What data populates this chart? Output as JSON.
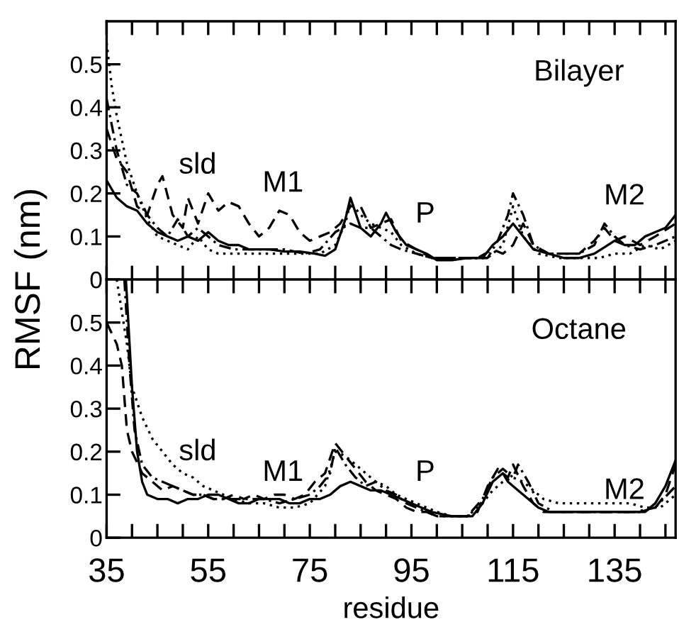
{
  "chart_data": [
    {
      "type": "line",
      "title": "Bilayer",
      "ylabel": "RMSF (nm)",
      "xlim": [
        35,
        147
      ],
      "ylim": [
        0,
        0.6
      ],
      "xticks": [
        {
          "value": 35,
          "label": null
        },
        {
          "value": 40,
          "label": null
        },
        {
          "value": 45,
          "label": null
        },
        {
          "value": 50,
          "label": null
        },
        {
          "value": 55,
          "label": null
        },
        {
          "value": 60,
          "label": null
        },
        {
          "value": 65,
          "label": null
        },
        {
          "value": 70,
          "label": null
        },
        {
          "value": 75,
          "label": null
        },
        {
          "value": 80,
          "label": null
        },
        {
          "value": 85,
          "label": null
        },
        {
          "value": 90,
          "label": null
        },
        {
          "value": 95,
          "label": null
        },
        {
          "value": 100,
          "label": null
        },
        {
          "value": 105,
          "label": null
        },
        {
          "value": 110,
          "label": null
        },
        {
          "value": 115,
          "label": null
        },
        {
          "value": 120,
          "label": null
        },
        {
          "value": 125,
          "label": null
        },
        {
          "value": 130,
          "label": null
        },
        {
          "value": 135,
          "label": null
        },
        {
          "value": 140,
          "label": null
        },
        {
          "value": 145,
          "label": null
        }
      ],
      "yticks": [
        0,
        0.1,
        0.2,
        0.3,
        0.4,
        0.5
      ],
      "tick_labels": "y",
      "grid": false,
      "legend": false,
      "annotations": [
        "sld",
        "M1",
        "P",
        "M2"
      ],
      "series": [
        {
          "color": "#000000",
          "line_style": "solid",
          "x": [
            35,
            37,
            39,
            41,
            43,
            45,
            47,
            49,
            51,
            53,
            55,
            57,
            59,
            61,
            63,
            65,
            67,
            70,
            73,
            76,
            78,
            80,
            82,
            83,
            85,
            87,
            89,
            90,
            92,
            94,
            96,
            98,
            100,
            103,
            106,
            109,
            111,
            113,
            115,
            117,
            119,
            122,
            125,
            128,
            131,
            133,
            135,
            137,
            139,
            141,
            143,
            145,
            147
          ],
          "values": [
            0.23,
            0.19,
            0.17,
            0.16,
            0.13,
            0.11,
            0.1,
            0.09,
            0.1,
            0.09,
            0.11,
            0.09,
            0.08,
            0.08,
            0.07,
            0.07,
            0.07,
            0.065,
            0.065,
            0.06,
            0.055,
            0.07,
            0.14,
            0.19,
            0.12,
            0.1,
            0.13,
            0.155,
            0.11,
            0.08,
            0.07,
            0.06,
            0.045,
            0.045,
            0.05,
            0.05,
            0.08,
            0.1,
            0.13,
            0.1,
            0.07,
            0.06,
            0.05,
            0.05,
            0.06,
            0.075,
            0.09,
            0.08,
            0.08,
            0.1,
            0.11,
            0.12,
            0.15
          ]
        },
        {
          "color": "#000000",
          "line_style": "dashed",
          "x": [
            35,
            37,
            39,
            41,
            43,
            45,
            46,
            48,
            50,
            51,
            53,
            55,
            57,
            59,
            61,
            63,
            65,
            67,
            69,
            71,
            73,
            75,
            77,
            79,
            81,
            83,
            85,
            87,
            89,
            91,
            93,
            96,
            99,
            102,
            105,
            108,
            111,
            113,
            115,
            117,
            119,
            122,
            125,
            128,
            131,
            133,
            135,
            137,
            140,
            143,
            147
          ],
          "values": [
            0.35,
            0.28,
            0.25,
            0.17,
            0.15,
            0.22,
            0.24,
            0.15,
            0.12,
            0.19,
            0.13,
            0.2,
            0.16,
            0.18,
            0.17,
            0.13,
            0.1,
            0.12,
            0.16,
            0.15,
            0.11,
            0.09,
            0.1,
            0.11,
            0.13,
            0.17,
            0.17,
            0.12,
            0.13,
            0.14,
            0.09,
            0.07,
            0.05,
            0.05,
            0.05,
            0.05,
            0.07,
            0.06,
            0.08,
            0.13,
            0.08,
            0.06,
            0.06,
            0.06,
            0.09,
            0.12,
            0.09,
            0.1,
            0.08,
            0.1,
            0.13
          ]
        },
        {
          "color": "#000000",
          "line_style": "dotted",
          "x": [
            35,
            36,
            37,
            39,
            41,
            43,
            45,
            47,
            49,
            51,
            53,
            55,
            57,
            60,
            63,
            66,
            70,
            74,
            77,
            80,
            82,
            83,
            85,
            87,
            89,
            91,
            93,
            96,
            99,
            103,
            107,
            110,
            113,
            115,
            117,
            120,
            124,
            128,
            132,
            135,
            138,
            141,
            144,
            147
          ],
          "values": [
            0.55,
            0.45,
            0.38,
            0.27,
            0.2,
            0.14,
            0.1,
            0.09,
            0.08,
            0.07,
            0.1,
            0.07,
            0.06,
            0.06,
            0.06,
            0.06,
            0.06,
            0.06,
            0.06,
            0.08,
            0.13,
            0.18,
            0.15,
            0.13,
            0.12,
            0.11,
            0.08,
            0.06,
            0.05,
            0.05,
            0.05,
            0.05,
            0.08,
            0.17,
            0.1,
            0.06,
            0.05,
            0.05,
            0.05,
            0.06,
            0.06,
            0.08,
            0.07,
            0.09
          ]
        },
        {
          "color": "#000000",
          "line_style": "dashdot",
          "x": [
            35,
            37,
            39,
            41,
            43,
            45,
            47,
            49,
            51,
            53,
            55,
            57,
            60,
            63,
            66,
            70,
            74,
            77,
            80,
            83,
            85,
            87,
            89,
            91,
            93,
            96,
            99,
            103,
            107,
            110,
            112,
            114,
            115,
            117,
            119,
            122,
            125,
            128,
            131,
            133,
            135,
            137,
            140,
            143,
            147
          ],
          "values": [
            0.42,
            0.3,
            0.22,
            0.2,
            0.15,
            0.12,
            0.1,
            0.14,
            0.1,
            0.12,
            0.1,
            0.08,
            0.07,
            0.07,
            0.07,
            0.07,
            0.06,
            0.07,
            0.11,
            0.13,
            0.12,
            0.12,
            0.1,
            0.08,
            0.07,
            0.06,
            0.05,
            0.05,
            0.05,
            0.05,
            0.09,
            0.15,
            0.2,
            0.15,
            0.08,
            0.06,
            0.06,
            0.06,
            0.08,
            0.13,
            0.1,
            0.08,
            0.07,
            0.08,
            0.1
          ]
        }
      ]
    },
    {
      "type": "line",
      "title": "Octane",
      "xlabel": "residue",
      "xlim": [
        35,
        147
      ],
      "ylim": [
        0,
        0.6
      ],
      "xticks": [
        35,
        {
          "value": 40,
          "label": null
        },
        {
          "value": 45,
          "label": null
        },
        {
          "value": 50,
          "label": null
        },
        55,
        {
          "value": 60,
          "label": null
        },
        {
          "value": 65,
          "label": null
        },
        {
          "value": 70,
          "label": null
        },
        75,
        {
          "value": 80,
          "label": null
        },
        {
          "value": 85,
          "label": null
        },
        {
          "value": 90,
          "label": null
        },
        95,
        {
          "value": 100,
          "label": null
        },
        {
          "value": 105,
          "label": null
        },
        {
          "value": 110,
          "label": null
        },
        115,
        {
          "value": 120,
          "label": null
        },
        {
          "value": 125,
          "label": null
        },
        {
          "value": 130,
          "label": null
        },
        135,
        {
          "value": 140,
          "label": null
        },
        {
          "value": 145,
          "label": null
        }
      ],
      "yticks": [
        0,
        0.1,
        0.2,
        0.3,
        0.4,
        0.5
      ],
      "grid": false,
      "legend": false,
      "annotations": [
        "sld",
        "M1",
        "P",
        "M2"
      ],
      "series": [
        {
          "color": "#000000",
          "line_style": "solid",
          "x": [
            38.8,
            40,
            41,
            42,
            43,
            45,
            47,
            49,
            51,
            53,
            55,
            57,
            59,
            61,
            63,
            65,
            67,
            69,
            71,
            73,
            75,
            77,
            79,
            81,
            83,
            85,
            87,
            89,
            91,
            93,
            95,
            97,
            99,
            101,
            103,
            105,
            107,
            109,
            111,
            113,
            114,
            116,
            118,
            120,
            122,
            124,
            126,
            130,
            134,
            138,
            141,
            143,
            145,
            147
          ],
          "values": [
            0.6,
            0.35,
            0.2,
            0.13,
            0.1,
            0.09,
            0.09,
            0.08,
            0.09,
            0.09,
            0.1,
            0.1,
            0.09,
            0.08,
            0.08,
            0.09,
            0.09,
            0.09,
            0.08,
            0.08,
            0.09,
            0.09,
            0.1,
            0.12,
            0.13,
            0.12,
            0.11,
            0.11,
            0.1,
            0.09,
            0.08,
            0.07,
            0.06,
            0.055,
            0.05,
            0.05,
            0.05,
            0.08,
            0.13,
            0.15,
            0.13,
            0.11,
            0.09,
            0.07,
            0.06,
            0.06,
            0.06,
            0.06,
            0.06,
            0.06,
            0.06,
            0.08,
            0.12,
            0.18
          ]
        },
        {
          "color": "#000000",
          "line_style": "dashed",
          "x": [
            35,
            37,
            38,
            39,
            40,
            42,
            44,
            46,
            48,
            50,
            52,
            54,
            56,
            58,
            60,
            62,
            64,
            66,
            68,
            70,
            72,
            74,
            76,
            78,
            80,
            82,
            84,
            86,
            88,
            90,
            92,
            94,
            96,
            98,
            100,
            103,
            106,
            108,
            110,
            112,
            114,
            115,
            117,
            119,
            121,
            124,
            128,
            132,
            136,
            140,
            143,
            145,
            147
          ],
          "values": [
            0.5,
            0.45,
            0.4,
            0.25,
            0.2,
            0.15,
            0.13,
            0.11,
            0.12,
            0.11,
            0.1,
            0.1,
            0.09,
            0.09,
            0.1,
            0.09,
            0.1,
            0.09,
            0.1,
            0.1,
            0.09,
            0.1,
            0.13,
            0.15,
            0.22,
            0.19,
            0.16,
            0.13,
            0.11,
            0.1,
            0.09,
            0.07,
            0.06,
            0.06,
            0.05,
            0.05,
            0.05,
            0.06,
            0.12,
            0.16,
            0.14,
            0.17,
            0.12,
            0.08,
            0.06,
            0.06,
            0.06,
            0.06,
            0.06,
            0.06,
            0.07,
            0.1,
            0.17
          ]
        },
        {
          "color": "#000000",
          "line_style": "dotted",
          "x": [
            37,
            39,
            40,
            42,
            44,
            46,
            48,
            50,
            52,
            54,
            56,
            58,
            60,
            63,
            66,
            69,
            72,
            75,
            78,
            80,
            82,
            84,
            86,
            88,
            90,
            92,
            94,
            96,
            98,
            100,
            103,
            106,
            109,
            111,
            113,
            115,
            117,
            119,
            121,
            124,
            127,
            130,
            134,
            138,
            141,
            144,
            147
          ],
          "values": [
            0.6,
            0.45,
            0.35,
            0.28,
            0.23,
            0.2,
            0.17,
            0.15,
            0.14,
            0.12,
            0.11,
            0.1,
            0.09,
            0.08,
            0.08,
            0.07,
            0.07,
            0.08,
            0.12,
            0.2,
            0.19,
            0.17,
            0.15,
            0.13,
            0.12,
            0.1,
            0.09,
            0.08,
            0.07,
            0.06,
            0.05,
            0.05,
            0.08,
            0.11,
            0.13,
            0.14,
            0.13,
            0.11,
            0.09,
            0.08,
            0.08,
            0.08,
            0.08,
            0.08,
            0.07,
            0.07,
            0.1
          ]
        },
        {
          "color": "#000000",
          "line_style": "dashdot",
          "x": [
            38.5,
            39.5,
            40.5,
            42,
            44,
            46,
            48,
            50,
            52,
            54,
            56,
            58,
            60,
            63,
            66,
            69,
            72,
            75,
            77,
            79,
            80,
            82,
            84,
            86,
            88,
            90,
            92,
            94,
            96,
            98,
            100,
            103,
            106,
            109,
            111,
            113,
            115,
            116,
            118,
            120,
            123,
            127,
            131,
            135,
            139,
            143,
            147
          ],
          "values": [
            0.6,
            0.4,
            0.25,
            0.17,
            0.14,
            0.13,
            0.12,
            0.11,
            0.1,
            0.1,
            0.09,
            0.09,
            0.09,
            0.09,
            0.09,
            0.08,
            0.09,
            0.1,
            0.12,
            0.15,
            0.21,
            0.17,
            0.14,
            0.12,
            0.13,
            0.11,
            0.1,
            0.08,
            0.07,
            0.06,
            0.05,
            0.05,
            0.05,
            0.09,
            0.14,
            0.16,
            0.14,
            0.17,
            0.13,
            0.08,
            0.06,
            0.06,
            0.06,
            0.06,
            0.06,
            0.07,
            0.12
          ]
        }
      ]
    }
  ]
}
